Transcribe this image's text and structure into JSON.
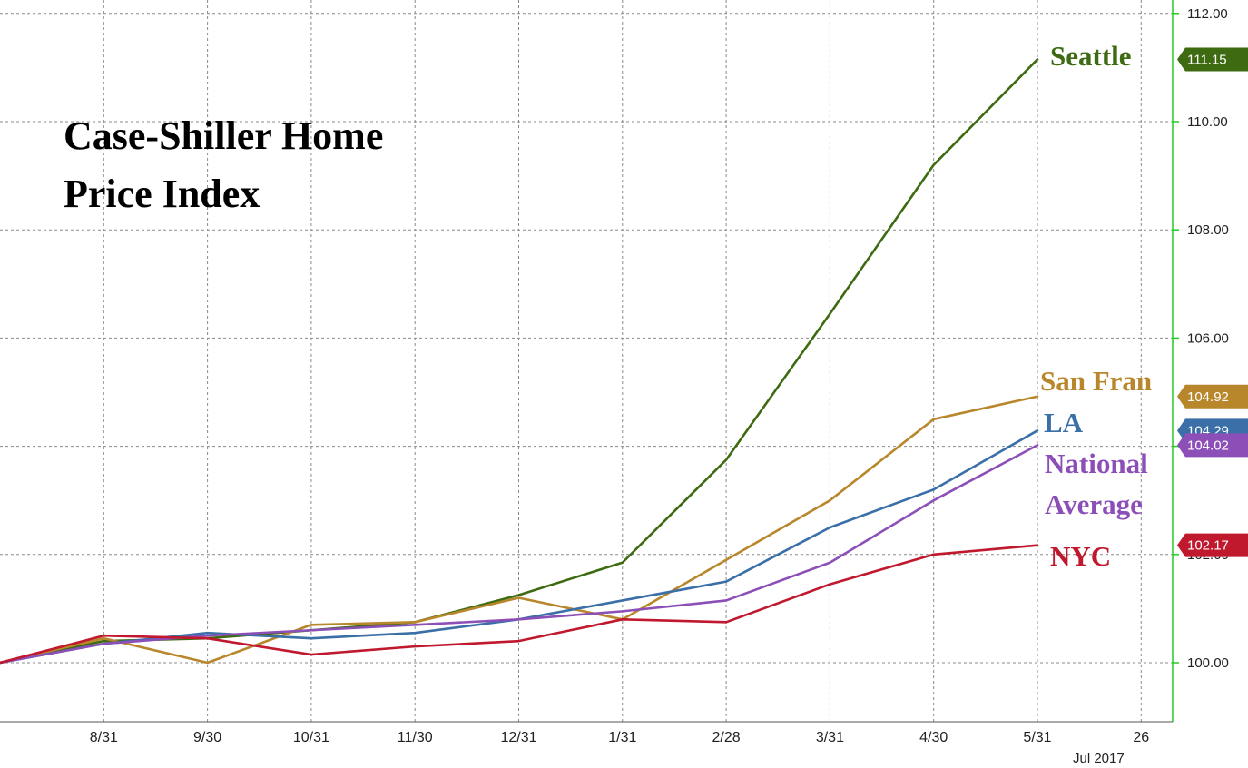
{
  "chart_data": {
    "type": "line",
    "title_lines": [
      "Case-Shiller Home",
      "Price Index"
    ],
    "x_tick_labels": [
      "8/31",
      "9/30",
      "10/31",
      "11/30",
      "12/31",
      "1/31",
      "2/28",
      "3/31",
      "4/30",
      "5/31",
      "26"
    ],
    "x_footer": "Jul 2017",
    "y_ticks": [
      "100.00",
      "102.00",
      "104.00",
      "106.00",
      "108.00",
      "110.00",
      "112.00"
    ],
    "ylim": [
      98.9,
      112.2
    ],
    "grid": true,
    "series": [
      {
        "name": "Seattle",
        "label_lines": [
          "Seattle"
        ],
        "color": "#3e6b12",
        "values": [
          100.0,
          100.4,
          100.45,
          100.6,
          100.75,
          101.25,
          101.85,
          103.75,
          106.45,
          109.2,
          111.15
        ],
        "last_value_tag": "111.15"
      },
      {
        "name": "San Fran",
        "label_lines": [
          "San Fran"
        ],
        "color": "#b8862b",
        "values": [
          100.0,
          100.45,
          100.0,
          100.7,
          100.75,
          101.2,
          100.8,
          101.9,
          103.0,
          104.5,
          104.92
        ],
        "last_value_tag": "104.92"
      },
      {
        "name": "LA",
        "label_lines": [
          "LA"
        ],
        "color": "#3a6fa8",
        "values": [
          100.0,
          100.35,
          100.55,
          100.45,
          100.55,
          100.8,
          101.15,
          101.5,
          102.5,
          103.2,
          104.29
        ],
        "last_value_tag": "104.29"
      },
      {
        "name": "National Average",
        "label_lines": [
          "National",
          "Average"
        ],
        "color": "#8c4fb8",
        "values": [
          100.0,
          100.35,
          100.5,
          100.6,
          100.7,
          100.8,
          100.95,
          101.15,
          101.85,
          103.0,
          104.02
        ],
        "last_value_tag": "104.02"
      },
      {
        "name": "NYC",
        "label_lines": [
          "NYC"
        ],
        "color": "#c0182d",
        "values": [
          100.0,
          100.5,
          100.45,
          100.15,
          100.3,
          100.4,
          100.8,
          100.75,
          101.45,
          102.0,
          102.17
        ],
        "last_value_tag": "102.17"
      }
    ]
  }
}
